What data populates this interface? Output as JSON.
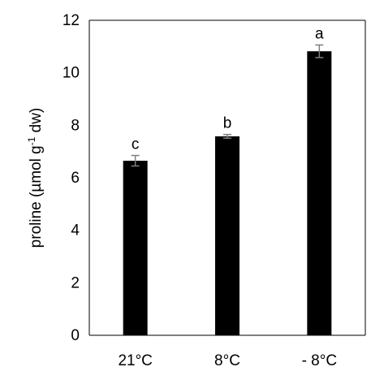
{
  "chart_data": {
    "type": "bar",
    "categories": [
      "21°C",
      "8°C",
      "- 8°C"
    ],
    "values": [
      6.65,
      7.58,
      10.82
    ],
    "errors": [
      0.2,
      0.07,
      0.24
    ],
    "significance_letters": [
      "c",
      "b",
      "a"
    ],
    "ylabel_prefix": "proline (µmol g",
    "ylabel_superscript": "-1",
    "ylabel_suffix": " dw)",
    "ylim": [
      0,
      12
    ],
    "yticks": [
      0,
      2,
      4,
      6,
      8,
      10,
      12
    ],
    "bar_color": "#000000",
    "error_bar_color": "#7f7f7f",
    "grid": false,
    "legend": "none"
  }
}
